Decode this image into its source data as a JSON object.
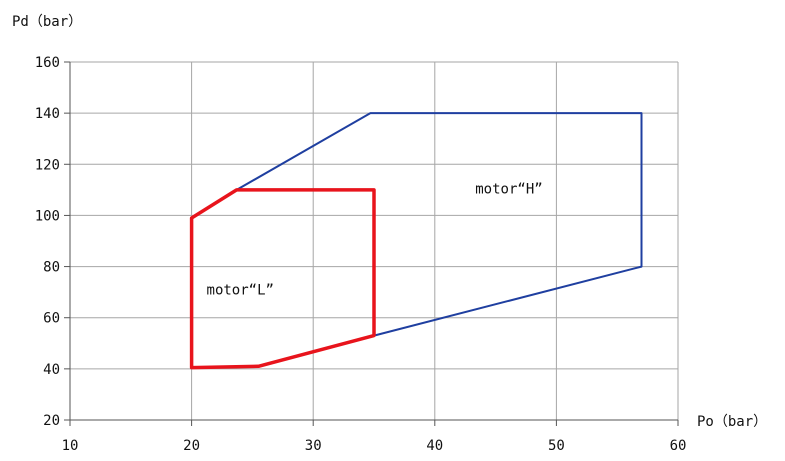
{
  "chart_data": {
    "type": "line",
    "xlabel": "Po（bar）",
    "ylabel": "Pd（bar）",
    "xlim": [
      10,
      60
    ],
    "ylim": [
      20,
      160
    ],
    "xticks": [
      10,
      20,
      30,
      40,
      50,
      60
    ],
    "yticks": [
      20,
      40,
      60,
      80,
      100,
      120,
      140,
      160
    ],
    "grid": true,
    "series": [
      {
        "color": "#1f3fa0",
        "closed": false,
        "points": [
          [
            35,
            53
          ],
          [
            57,
            80
          ],
          [
            57,
            140
          ],
          [
            34.7,
            140
          ],
          [
            23.7,
            110
          ],
          [
            20,
            99
          ]
        ]
      },
      {
        "color": "#e8141c",
        "closed": true,
        "points": [
          [
            20,
            99
          ],
          [
            23.7,
            110
          ],
          [
            35,
            110
          ],
          [
            35,
            53
          ],
          [
            25.5,
            41
          ],
          [
            20,
            40.5
          ]
        ]
      }
    ],
    "annotations": [
      {
        "text": "motor“H”",
        "x": 46.1,
        "y": 108.5
      },
      {
        "text": "motor“L”",
        "x": 24,
        "y": 69
      }
    ]
  }
}
